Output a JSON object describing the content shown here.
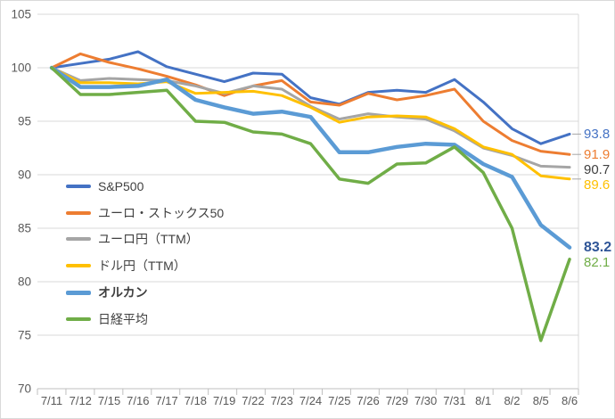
{
  "chart_data": {
    "type": "line",
    "title": "",
    "categories": [
      "7/11",
      "7/12",
      "7/15",
      "7/16",
      "7/17",
      "7/18",
      "7/19",
      "7/22",
      "7/23",
      "7/24",
      "7/25",
      "7/26",
      "7/29",
      "7/30",
      "7/31",
      "8/1",
      "8/2",
      "8/5",
      "8/6"
    ],
    "series": [
      {
        "key": "sp500",
        "name": "S&P500",
        "color": "#4472C4",
        "line_width": 3,
        "end_label": "93.8",
        "end_label_color": "#4472C4",
        "end_label_bold": false,
        "legend_bold": false,
        "values": [
          100,
          100.4,
          100.8,
          101.5,
          100.1,
          99.4,
          98.7,
          99.5,
          99.4,
          97.2,
          96.6,
          97.7,
          97.9,
          97.7,
          98.9,
          96.8,
          94.3,
          92.9,
          93.8
        ]
      },
      {
        "key": "euro-stoxx50",
        "name": "ユーロ・ストックス50",
        "color": "#ED7D31",
        "line_width": 3,
        "end_label": "91.9",
        "end_label_color": "#ED7D31",
        "end_label_bold": false,
        "legend_bold": false,
        "values": [
          100,
          101.3,
          100.5,
          99.9,
          99.2,
          98.4,
          97.4,
          98.3,
          98.8,
          96.8,
          96.5,
          97.6,
          97.0,
          97.4,
          98.0,
          95.0,
          93.2,
          92.2,
          91.9
        ]
      },
      {
        "key": "euro-yen",
        "name": "ユーロ円（TTM）",
        "color": "#A5A5A5",
        "line_width": 3,
        "end_label": "90.7",
        "end_label_color": "#404040",
        "end_label_bold": false,
        "legend_bold": false,
        "values": [
          100,
          98.8,
          99.0,
          98.9,
          98.8,
          98.3,
          97.6,
          98.3,
          98.0,
          96.4,
          95.2,
          95.7,
          95.4,
          95.2,
          94.1,
          92.5,
          91.8,
          90.8,
          90.7
        ]
      },
      {
        "key": "dollar-yen",
        "name": "ドル円（TTM）",
        "color": "#FFC000",
        "line_width": 3,
        "end_label": "89.6",
        "end_label_color": "#FFC000",
        "end_label_bold": false,
        "legend_bold": false,
        "values": [
          100,
          98.6,
          98.6,
          98.5,
          98.7,
          97.6,
          97.7,
          97.8,
          97.4,
          96.3,
          94.9,
          95.4,
          95.5,
          95.4,
          94.3,
          92.6,
          91.9,
          89.9,
          89.6
        ]
      },
      {
        "key": "orukan",
        "name": "オルカン",
        "color": "#5B9BD5",
        "line_width": 4.5,
        "end_label": "83.2",
        "end_label_color": "#2F5597",
        "end_label_bold": true,
        "legend_bold": true,
        "values": [
          100,
          98.2,
          98.2,
          98.3,
          98.9,
          97.0,
          96.3,
          95.7,
          95.9,
          95.4,
          92.1,
          92.1,
          92.6,
          92.9,
          92.8,
          91.0,
          89.8,
          85.3,
          83.2
        ]
      },
      {
        "key": "nikkei",
        "name": "日経平均",
        "color": "#70AD47",
        "line_width": 3.5,
        "end_label": "82.1",
        "end_label_color": "#70AD47",
        "end_label_bold": false,
        "legend_bold": false,
        "values": [
          100,
          97.5,
          97.5,
          97.7,
          97.9,
          95.0,
          94.9,
          94.0,
          93.8,
          92.9,
          89.6,
          89.2,
          91.0,
          91.1,
          92.6,
          90.2,
          85.0,
          74.5,
          82.1
        ]
      }
    ],
    "y_axis": {
      "min": 70,
      "max": 105,
      "step": 5,
      "ticks": [
        105,
        100,
        95,
        90,
        85,
        80,
        75,
        70
      ]
    },
    "x_axis_label": "",
    "y_axis_label": "",
    "grid": true,
    "legend_position": "inside-left",
    "style": {
      "grid_color": "#d9d9d9",
      "axis_color": "#bfbfbf",
      "tick_label_color": "#595959",
      "legend_text_color": "#404040",
      "leader_line_color": "#a6a6a6",
      "background": "#ffffff"
    }
  }
}
